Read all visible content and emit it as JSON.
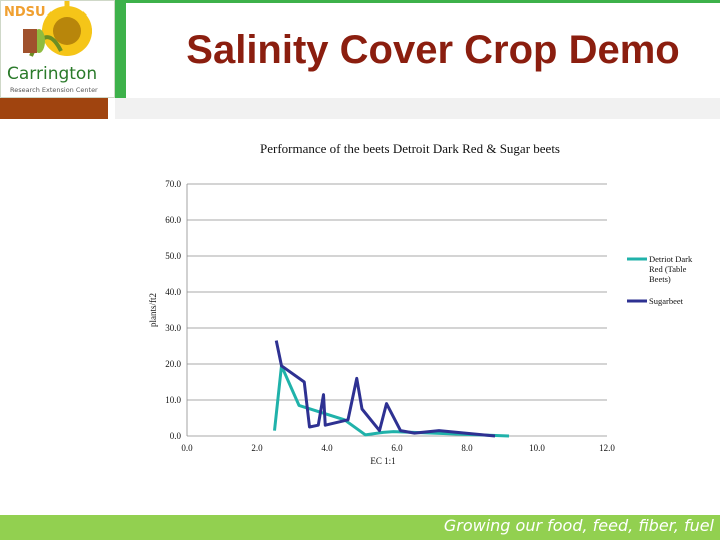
{
  "header": {
    "title": "Salinity Cover Crop Demo",
    "logo": {
      "vertical_letters": "NDSU",
      "main_text": "Carrington",
      "sub_text": "Research Extension Center"
    }
  },
  "footer": {
    "tagline": "Growing our food, feed, fiber, fuel"
  },
  "colors": {
    "header_green": "#3db14a",
    "title_red": "#8b1e0f",
    "accent_brown": "#a0440f",
    "footer_green": "#92d050",
    "series_teal": "#20b2aa",
    "series_navy": "#2e3192"
  },
  "chart_data": {
    "type": "line",
    "title": "Performance of the beets Detroit Dark Red & Sugar beets",
    "xlabel": "EC 1:1",
    "ylabel": "plants/ft2",
    "xlim": [
      0,
      12
    ],
    "ylim": [
      0,
      70
    ],
    "xticks": [
      "0.0",
      "2.0",
      "4.0",
      "6.0",
      "8.0",
      "10.0",
      "12.0"
    ],
    "yticks": [
      "0.0",
      "10.0",
      "20.0",
      "30.0",
      "40.0",
      "50.0",
      "60.0",
      "70.0"
    ],
    "grid": true,
    "legend_position": "right",
    "series": [
      {
        "name": "Detriot Dark Red (Table Beets)",
        "color": "#20b2aa",
        "x": [
          2.5,
          2.7,
          3.2,
          4.5,
          5.1,
          5.6,
          5.9,
          9.2
        ],
        "y": [
          1.5,
          19.5,
          8.5,
          4.5,
          0.3,
          1.0,
          1.2,
          0
        ]
      },
      {
        "name": "Sugarbeet",
        "color": "#2e3192",
        "x": [
          2.55,
          2.7,
          3.35,
          3.5,
          3.75,
          3.9,
          3.95,
          4.6,
          4.85,
          5.0,
          5.5,
          5.7,
          6.1,
          6.5,
          7.2,
          8.8
        ],
        "y": [
          26.5,
          19.5,
          15.0,
          2.5,
          3.0,
          11.5,
          3.0,
          4.5,
          16.0,
          7.5,
          1.5,
          9.0,
          1.5,
          0.8,
          1.5,
          0
        ]
      }
    ]
  }
}
